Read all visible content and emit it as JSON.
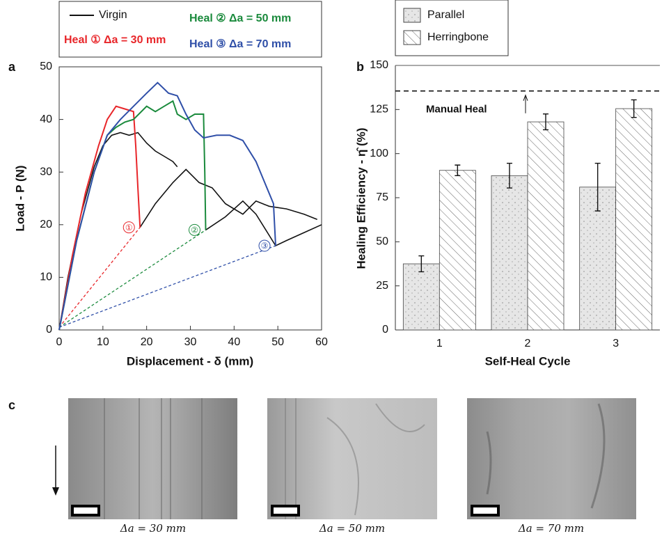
{
  "chart_data": [
    {
      "type": "line",
      "panel": "a",
      "xlabel": "Displacement - δ (mm)",
      "ylabel": "Load - P (N)",
      "xlim": [
        0,
        60
      ],
      "xticks": [
        0,
        10,
        20,
        30,
        40,
        50,
        60
      ],
      "ylim": [
        0,
        50
      ],
      "yticks": [
        0,
        10,
        20,
        30,
        40,
        50
      ],
      "series": [
        {
          "name": "Virgin",
          "color": "#111111",
          "x": [
            0,
            2,
            5,
            8,
            10,
            12,
            14,
            16,
            18,
            20,
            22,
            24,
            26,
            27,
            null,
            18.5,
            22,
            26,
            29,
            32,
            35,
            38,
            42,
            45,
            48,
            52,
            56,
            59,
            null,
            33.5,
            38,
            42,
            45,
            49.5,
            52,
            56,
            60
          ],
          "values": [
            0,
            10,
            22,
            31,
            35,
            37,
            37.5,
            37,
            37.5,
            35.5,
            34,
            33,
            32,
            31,
            null,
            19.5,
            24,
            28,
            30.5,
            28,
            27,
            24,
            22,
            24.5,
            23.5,
            23,
            22,
            21,
            null,
            19,
            21.5,
            24.5,
            22,
            16,
            17,
            18.5,
            20
          ]
        },
        {
          "name": "Heal ① Δa = 30 mm",
          "color": "#e8262a",
          "x": [
            0,
            3,
            6,
            9,
            11,
            13,
            15,
            17,
            17.5,
            18,
            18.5
          ],
          "values": [
            0,
            14,
            26,
            35,
            40,
            42.5,
            42,
            41.5,
            35,
            27,
            19.5
          ]
        },
        {
          "name": "Heal ② Δa = 50 mm",
          "color": "#1a8a3c",
          "x": [
            0,
            4,
            8,
            11,
            13,
            15,
            17,
            20,
            22,
            24,
            26,
            27,
            29,
            31,
            33,
            33.3,
            33.5
          ],
          "values": [
            0,
            17,
            30,
            37,
            38.5,
            39.5,
            40,
            42.5,
            41.5,
            42.5,
            43.5,
            41,
            40,
            41,
            41,
            30,
            19
          ]
        },
        {
          "name": "Heal ③ Δa = 70 mm",
          "color": "#2f4fa8",
          "x": [
            0,
            4,
            8,
            11,
            14,
            17,
            20,
            22.5,
            25,
            27,
            29,
            31,
            33,
            36,
            39,
            42,
            45,
            47,
            49,
            49.5
          ],
          "values": [
            0,
            17,
            30,
            37,
            40,
            42.5,
            45,
            47,
            45,
            44.5,
            41,
            38,
            36.5,
            37,
            37,
            36,
            32,
            28,
            24,
            16
          ]
        }
      ],
      "reference_lines": [
        {
          "label": "①",
          "color": "#e8262a",
          "x": [
            0,
            18.5
          ],
          "values": [
            0.5,
            19.5
          ]
        },
        {
          "label": "②",
          "color": "#1a8a3c",
          "x": [
            0,
            33.5
          ],
          "values": [
            0.5,
            19
          ]
        },
        {
          "label": "③",
          "color": "#2f4fa8",
          "x": [
            0,
            49.5
          ],
          "values": [
            0.5,
            16
          ]
        }
      ]
    },
    {
      "type": "bar",
      "panel": "b",
      "xlabel": "Self-Heal Cycle",
      "ylabel": "Healing Efficiency - η̂ (%)",
      "categories": [
        "1",
        "2",
        "3"
      ],
      "ylim": [
        0,
        150
      ],
      "yticks": [
        0,
        25,
        50,
        75,
        100,
        125,
        150
      ],
      "series": [
        {
          "name": "Parallel",
          "color": "#e6e6e6",
          "values": [
            37.5,
            87.5,
            81
          ],
          "errors": [
            4.5,
            7,
            13.5
          ]
        },
        {
          "name": "Herringbone",
          "color": "#ffffff",
          "values": [
            90.5,
            118,
            125.5
          ],
          "errors": [
            3,
            4.5,
            5
          ]
        }
      ],
      "reference_line": {
        "label": "Manual Heal",
        "value": 135.5
      }
    }
  ],
  "panel_c": {
    "label": "c",
    "captions": [
      "Δa = 30 mm",
      "Δa = 50 mm",
      "Δa = 70 mm"
    ]
  }
}
